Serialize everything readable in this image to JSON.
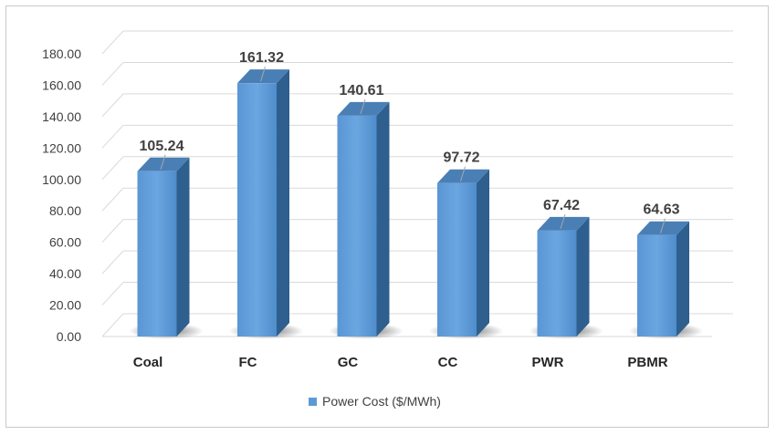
{
  "chart_data": {
    "type": "bar",
    "categories": [
      "Coal",
      "FC",
      "GC",
      "CC",
      "PWR",
      "PBMR"
    ],
    "series": [
      {
        "name": "Power Cost ($/MWh)",
        "values": [
          105.24,
          161.32,
          140.61,
          97.72,
          67.42,
          64.63
        ]
      }
    ],
    "data_labels": [
      "105.24",
      "161.32",
      "140.61",
      "97.72",
      "67.42",
      "64.63"
    ],
    "y_ticks": [
      "0.00",
      "20.00",
      "40.00",
      "60.00",
      "80.00",
      "100.00",
      "120.00",
      "140.00",
      "160.00",
      "180.00"
    ],
    "ylim": [
      0,
      180
    ],
    "grid": true,
    "three_d": true,
    "legend_position": "bottom",
    "bar_color": "#5b9bd5",
    "bar_side_color": "#2e5f8e",
    "bar_top_color": "#4a7fb5"
  }
}
